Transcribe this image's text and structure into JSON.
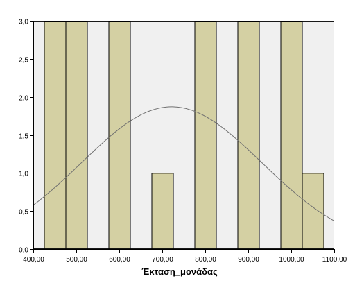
{
  "chart_data": {
    "type": "bar",
    "subtype": "histogram with normal curve",
    "xlabel": "Έκταση_μονάδας",
    "ylabel": "",
    "xlim": [
      400,
      1100
    ],
    "ylim": [
      0,
      3
    ],
    "x_ticks": [
      400,
      500,
      600,
      700,
      800,
      900,
      1000,
      1100
    ],
    "x_tick_labels": [
      "400,00",
      "500,00",
      "600,00",
      "700,00",
      "800,00",
      "900,00",
      "1000,00",
      "1100,00"
    ],
    "y_ticks": [
      0,
      0.5,
      1,
      1.5,
      2,
      2.5,
      3
    ],
    "y_tick_labels": [
      "0,0",
      "0,5",
      "1,0",
      "1,5",
      "2,0",
      "2,5",
      "3,0"
    ],
    "bars": [
      {
        "x0": 425,
        "x1": 475,
        "value": 3
      },
      {
        "x0": 475,
        "x1": 525,
        "value": 3
      },
      {
        "x0": 575,
        "x1": 625,
        "value": 3
      },
      {
        "x0": 675,
        "x1": 725,
        "value": 1
      },
      {
        "x0": 775,
        "x1": 825,
        "value": 3
      },
      {
        "x0": 875,
        "x1": 925,
        "value": 3
      },
      {
        "x0": 975,
        "x1": 1025,
        "value": 3
      },
      {
        "x0": 1025,
        "x1": 1075,
        "value": 1
      }
    ],
    "normal_curve": {
      "mean": 722,
      "sd": 210,
      "peak": 1.87
    },
    "grid": false,
    "colors": {
      "bar_fill": "#d4d0a3",
      "bar_stroke": "#000000",
      "plot_background": "#f0f0f0",
      "curve": "#707070"
    }
  }
}
